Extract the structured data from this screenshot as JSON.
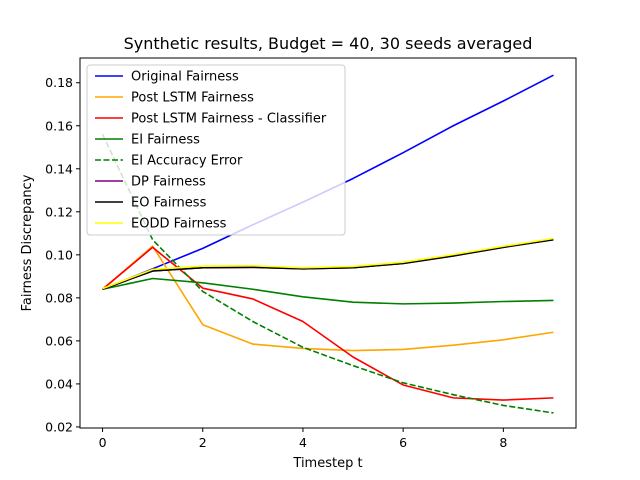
{
  "chart_data": {
    "type": "line",
    "title": "Synthetic results, Budget = 40, 30 seeds averaged",
    "xlabel": "Timestep t",
    "ylabel": "Fairness Discrepancy",
    "xlim": [
      -0.45,
      9.45
    ],
    "ylim": [
      0.0195,
      0.1915
    ],
    "xticks": [
      0,
      2,
      4,
      6,
      8
    ],
    "yticks": [
      0.02,
      0.04,
      0.06,
      0.08,
      0.1,
      0.12,
      0.14,
      0.16,
      0.18
    ],
    "ytick_labels": [
      "0.02",
      "0.04",
      "0.06",
      "0.08",
      "0.10",
      "0.12",
      "0.14",
      "0.16",
      "0.18"
    ],
    "legend_position": "upper left",
    "grid": false,
    "x": [
      0,
      1,
      2,
      3,
      4,
      5,
      6,
      7,
      8,
      9
    ],
    "series": [
      {
        "name": "Original Fairness",
        "color": "#0000ff",
        "dash": "solid",
        "values": [
          0.084,
          0.0935,
          0.103,
          0.114,
          0.1245,
          0.1355,
          0.1475,
          0.16,
          0.1715,
          0.1835
        ]
      },
      {
        "name": "Post LSTM Fairness",
        "color": "#ffa500",
        "dash": "solid",
        "values": [
          0.084,
          0.104,
          0.0675,
          0.0585,
          0.0565,
          0.0555,
          0.056,
          0.058,
          0.0605,
          0.064
        ]
      },
      {
        "name": "Post LSTM Fairness - Classifier",
        "color": "#ff0000",
        "dash": "solid",
        "values": [
          0.084,
          0.1035,
          0.0845,
          0.0795,
          0.069,
          0.0525,
          0.0395,
          0.0335,
          0.0325,
          0.0335
        ]
      },
      {
        "name": "EI Fairness",
        "color": "#008000",
        "dash": "solid",
        "values": [
          0.084,
          0.089,
          0.087,
          0.084,
          0.0805,
          0.078,
          0.0772,
          0.0776,
          0.0783,
          0.0788
        ]
      },
      {
        "name": "EI Accuracy Error",
        "color": "#008000",
        "dash": "dashed",
        "values": [
          0.156,
          0.107,
          0.083,
          0.069,
          0.057,
          0.0485,
          0.0405,
          0.035,
          0.03,
          0.0265
        ]
      },
      {
        "name": "DP Fairness",
        "color": "#800080",
        "dash": "solid",
        "values": [
          0.084,
          0.0925,
          0.094,
          0.0942,
          0.0935,
          0.094,
          0.096,
          0.0995,
          0.1035,
          0.107
        ]
      },
      {
        "name": "EO Fairness",
        "color": "#000000",
        "dash": "solid",
        "values": [
          0.084,
          0.0925,
          0.094,
          0.0942,
          0.0935,
          0.094,
          0.096,
          0.0995,
          0.1035,
          0.107
        ]
      },
      {
        "name": "EODD Fairness",
        "color": "#ffff00",
        "dash": "solid",
        "values": [
          0.0843,
          0.0932,
          0.0948,
          0.0949,
          0.094,
          0.0946,
          0.0966,
          0.1001,
          0.104,
          0.1076
        ]
      }
    ]
  }
}
